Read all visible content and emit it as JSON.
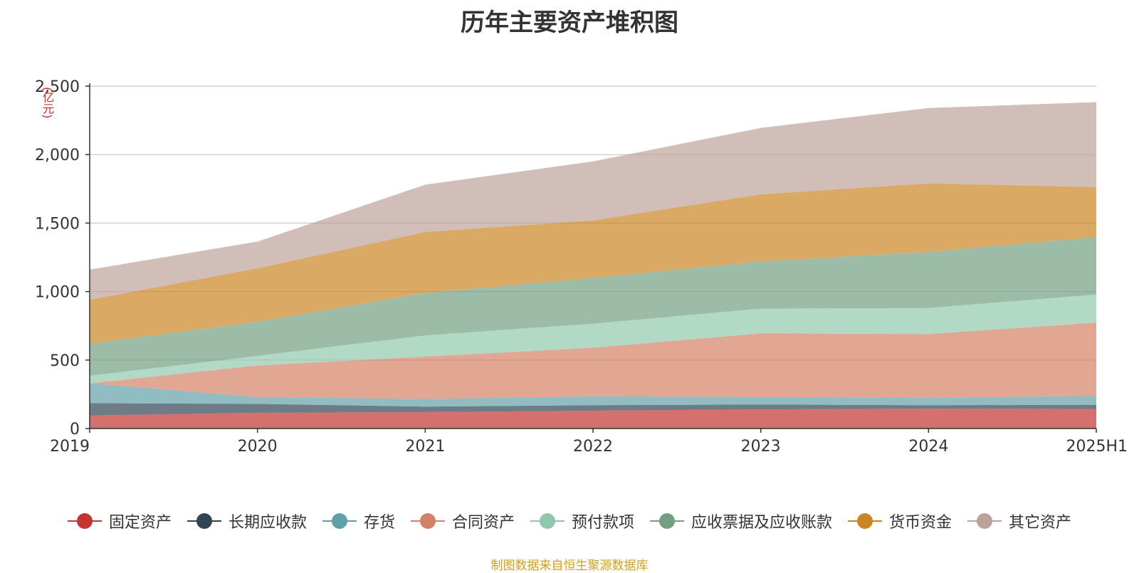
{
  "chart_data": {
    "type": "area",
    "stacked": true,
    "title": "历年主要资产堆积图",
    "ylabel": "(亿元)",
    "categories": [
      "2019",
      "2020",
      "2021",
      "2022",
      "2023",
      "2024",
      "2025H1"
    ],
    "ylim": [
      0,
      2500
    ],
    "yticks": [
      0,
      500,
      1000,
      1500,
      2000,
      2500
    ],
    "ytick_labels": [
      "0",
      "500",
      "1,000",
      "1,500",
      "2,000",
      "2,500"
    ],
    "grid": true,
    "legend_position": "bottom",
    "series": [
      {
        "name": "固定资产",
        "color": "#c23531",
        "values": [
          95,
          115,
          120,
          130,
          140,
          145,
          143
        ]
      },
      {
        "name": "长期应收款",
        "color": "#2f4554",
        "values": [
          90,
          65,
          40,
          40,
          35,
          25,
          30
        ]
      },
      {
        "name": "存货",
        "color": "#61a0a8",
        "values": [
          145,
          50,
          55,
          65,
          55,
          55,
          65
        ]
      },
      {
        "name": "合同资产",
        "color": "#d48265",
        "values": [
          0,
          230,
          310,
          355,
          465,
          465,
          535
        ]
      },
      {
        "name": "预付款项",
        "color": "#91c7ae",
        "values": [
          55,
          70,
          155,
          175,
          180,
          190,
          205
        ]
      },
      {
        "name": "应收票据及应收账款",
        "color": "#749f83",
        "values": [
          235,
          250,
          310,
          335,
          345,
          410,
          420
        ]
      },
      {
        "name": "货币资金",
        "color": "#ca8622",
        "values": [
          320,
          390,
          445,
          420,
          490,
          500,
          365
        ]
      },
      {
        "name": "其它资产",
        "color": "#bda29a",
        "values": [
          220,
          195,
          345,
          430,
          485,
          550,
          620
        ]
      }
    ]
  },
  "source_note": "制图数据来自恒生聚源数据库"
}
